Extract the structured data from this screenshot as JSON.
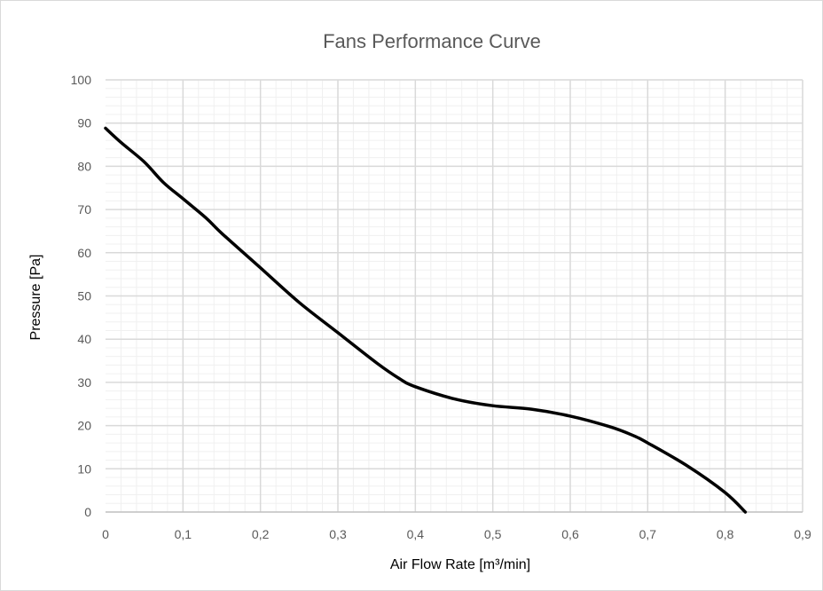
{
  "chart_data": {
    "type": "line",
    "title": "Fans Performance Curve",
    "xlabel": "Air Flow Rate [m³/min]",
    "ylabel": "Pressure [Pa]",
    "xlim": [
      0,
      0.9
    ],
    "ylim": [
      0,
      100
    ],
    "x_ticks": [
      "0",
      "0,1",
      "0,2",
      "0,3",
      "0,4",
      "0,5",
      "0,6",
      "0,7",
      "0,8",
      "0,9"
    ],
    "y_ticks": [
      "0",
      "10",
      "20",
      "30",
      "40",
      "50",
      "60",
      "70",
      "80",
      "90",
      "100"
    ],
    "grid": true,
    "minor_grid": true,
    "legend": "none",
    "line_color": "#000000",
    "series": [
      {
        "x": [
          0,
          0.02,
          0.05,
          0.075,
          0.1,
          0.13,
          0.15,
          0.2,
          0.25,
          0.3,
          0.35,
          0.38,
          0.4,
          0.45,
          0.5,
          0.55,
          0.6,
          0.65,
          0.68,
          0.7,
          0.75,
          0.8,
          0.826
        ],
        "y": [
          88.8,
          85.5,
          81,
          76.2,
          72.5,
          68,
          64.5,
          56.5,
          48.5,
          41.5,
          34.5,
          30.8,
          29,
          26.2,
          24.6,
          23.8,
          22.2,
          19.8,
          17.8,
          16,
          10.8,
          4.5,
          0
        ]
      }
    ]
  }
}
